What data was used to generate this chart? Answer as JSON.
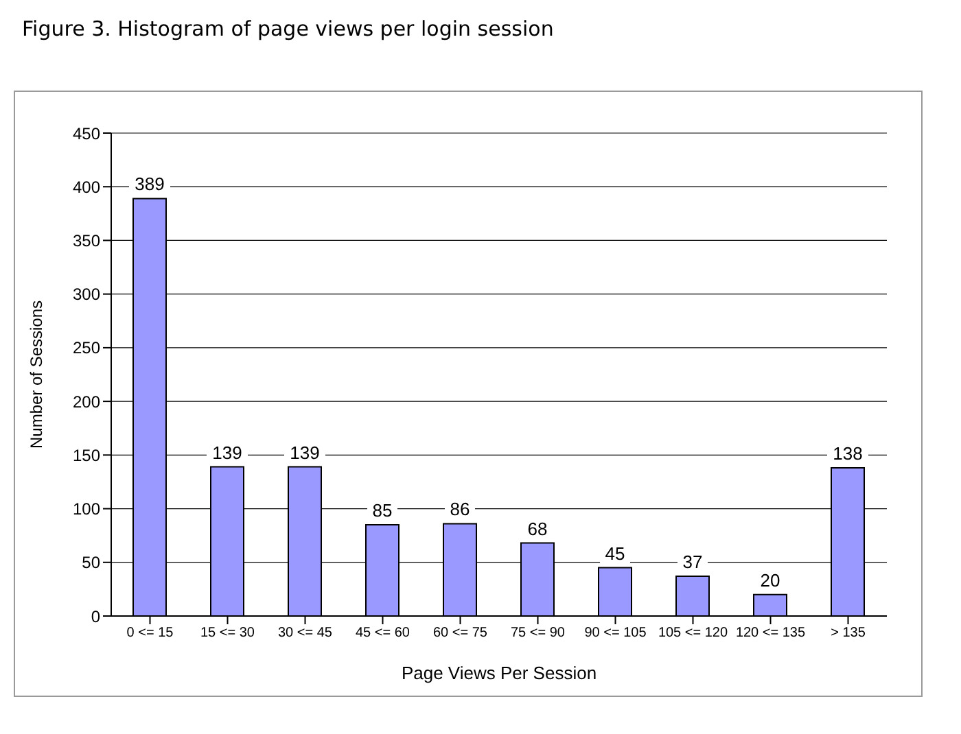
{
  "chart_data": {
    "type": "bar",
    "title": "Figure 3. Histogram of page views per login session",
    "xlabel": "Page Views Per Session",
    "ylabel": "Number of Sessions",
    "categories": [
      "0 <= 15",
      "15 <= 30",
      "30 <= 45",
      "45 <= 60",
      "60 <= 75",
      "75 <= 90",
      "90 <= 105",
      "105 <= 120",
      "120 <= 135",
      "> 135"
    ],
    "values": [
      389,
      139,
      139,
      85,
      86,
      68,
      45,
      37,
      20,
      138
    ],
    "color": "#9999ff",
    "data_labels": true,
    "grid": "y",
    "ylim": [
      0,
      450
    ],
    "yticks": [
      0,
      50,
      100,
      150,
      200,
      250,
      300,
      350,
      400,
      450
    ]
  }
}
